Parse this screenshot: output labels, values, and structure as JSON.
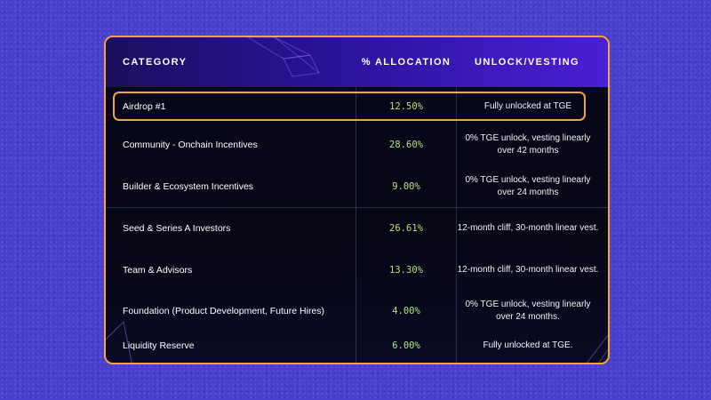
{
  "table": {
    "headers": {
      "category": "CATEGORY",
      "allocation": "% ALLOCATION",
      "unlock": "UNLOCK/VESTING"
    },
    "rows": [
      {
        "category": "Airdrop #1",
        "allocation": "12.50%",
        "unlock": "Fully unlocked at TGE",
        "highlighted": true
      },
      {
        "category": "Community - Onchain Incentives",
        "allocation": "28.60%",
        "unlock": "0% TGE unlock, vesting linearly over 42 months"
      },
      {
        "category": "Builder & Ecosystem Incentives",
        "allocation": "9.00%",
        "unlock": "0% TGE unlock, vesting linearly over 24 months"
      },
      {
        "category": "Seed & Series A Investors",
        "allocation": "26.61%",
        "unlock": "12-month cliff, 30-month linear vest."
      },
      {
        "category": "Team & Advisors",
        "allocation": "13.30%",
        "unlock": "12-month cliff, 30-month linear vest."
      },
      {
        "category": "Foundation (Product Development, Future Hires)",
        "allocation": "4.00%",
        "unlock": "0% TGE unlock, vesting linearly over 24 months."
      },
      {
        "category": "Liquidity Reserve",
        "allocation": "6.00%",
        "unlock": "Fully unlocked at TGE."
      }
    ]
  },
  "colors": {
    "background": "#4b3fd0",
    "border_accent": "#f2a63a",
    "allocation_text": "#b8e07a",
    "header_gradient_start": "#1b0f5e",
    "header_gradient_end": "#4a1fd6"
  }
}
